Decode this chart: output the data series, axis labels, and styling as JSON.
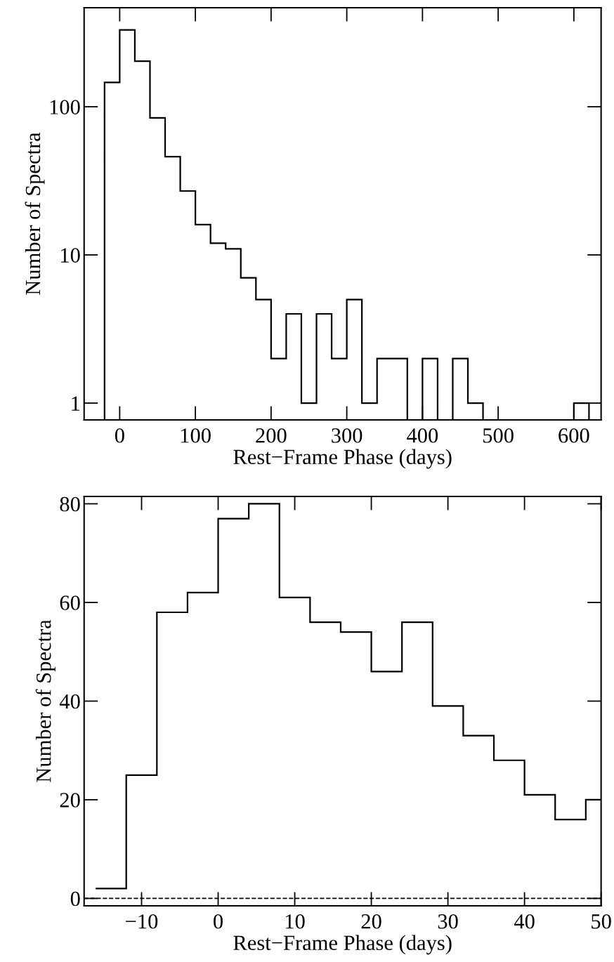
{
  "chart_data": [
    {
      "type": "histogram",
      "xlabel": "Rest−Frame Phase (days)",
      "ylabel": "Number of Spectra",
      "log": "y",
      "color": "#000000",
      "bins": [
        -20,
        0,
        20,
        40,
        60,
        80,
        100,
        120,
        140,
        160,
        180,
        200,
        220,
        240,
        260,
        280,
        300,
        320,
        340,
        360,
        380,
        400,
        420,
        440,
        460,
        480,
        500,
        520,
        540,
        560,
        580,
        600,
        620
      ],
      "values": [
        146,
        330,
        203,
        84,
        46,
        27,
        16,
        12,
        11,
        7,
        5,
        2,
        4,
        1,
        4,
        2,
        5,
        1,
        2,
        2,
        null,
        2,
        null,
        2,
        1,
        null,
        null,
        null,
        null,
        null,
        null,
        1
      ],
      "xlim": [
        -47,
        636
      ],
      "xticks": [
        0,
        100,
        200,
        300,
        400,
        500,
        600
      ],
      "ylim": [
        0.77,
        466
      ],
      "yticks": [
        1,
        10,
        100
      ],
      "grid": false,
      "legend": false
    },
    {
      "type": "histogram",
      "xlabel": "Rest−Frame Phase (days)",
      "ylabel": "Number of Spectra",
      "color": "#000000",
      "bins": [
        -16,
        -12,
        -8,
        -4,
        0,
        4,
        8,
        12,
        16,
        20,
        24,
        28,
        32,
        36,
        40,
        44,
        48,
        52
      ],
      "values": [
        2,
        25,
        58,
        62,
        77,
        80,
        61,
        56,
        54,
        46,
        56,
        39,
        33,
        28,
        21,
        16,
        20
      ],
      "xlim": [
        -17.5,
        50
      ],
      "xticks": [
        -10,
        0,
        10,
        20,
        30,
        40,
        50
      ],
      "ylim": [
        -1.5,
        81.5
      ],
      "yticks": [
        0,
        20,
        40,
        60,
        80
      ],
      "grid": false,
      "legend": false,
      "ref_lines": [
        {
          "axis": "y",
          "value": 0,
          "color": "#000000",
          "line_style": "dashed"
        }
      ]
    }
  ]
}
